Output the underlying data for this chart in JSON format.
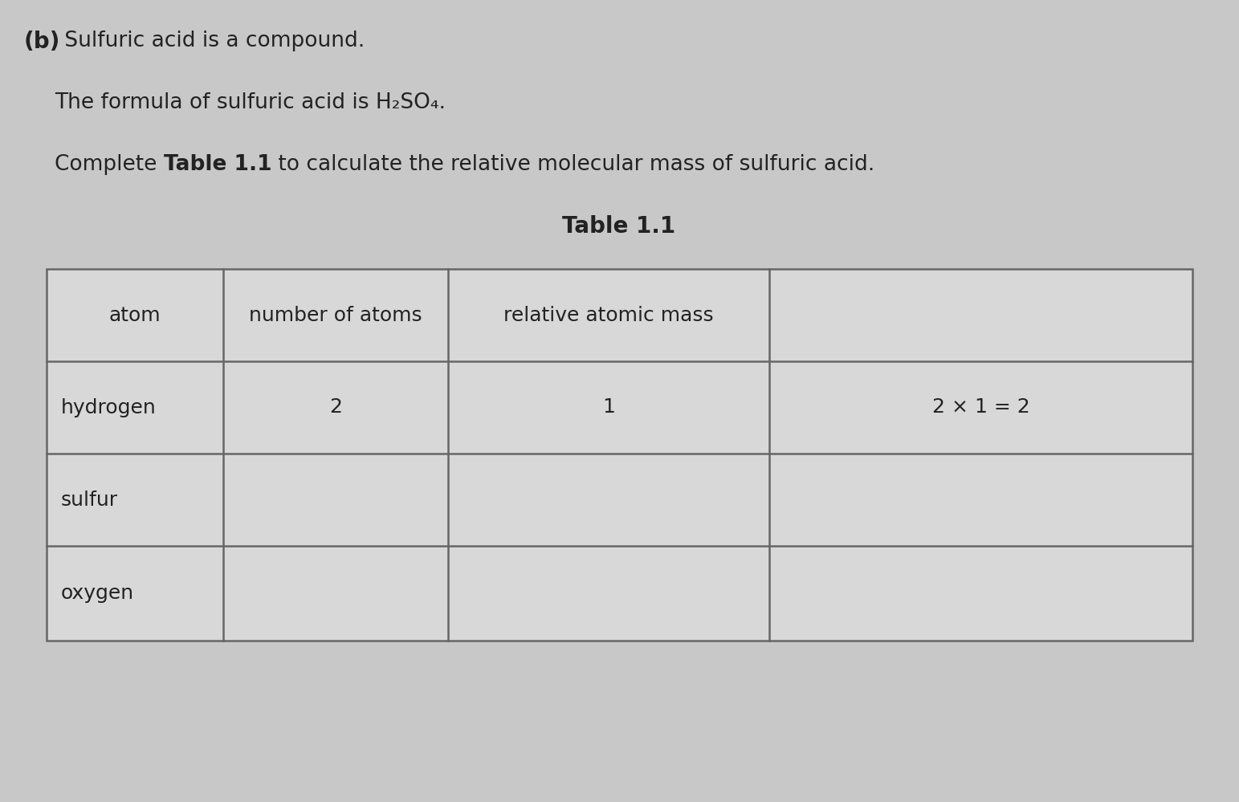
{
  "background_color": "#c8c8c8",
  "text_color": "#222222",
  "title_bold": "(b)",
  "line1_rest": " Sulfuric acid is a compound.",
  "line2": "The formula of sulfuric acid is H₂SO₄.",
  "line3_prefix": "Complete ",
  "line3_bold": "Table 1.1",
  "line3_suffix": " to calculate the relative molecular mass of sulfuric acid.",
  "table_title": "Table 1.1",
  "col_headers": [
    "atom",
    "number of atoms",
    "relative atomic mass",
    ""
  ],
  "rows": [
    [
      "hydrogen",
      "2",
      "1",
      "2 × 1 = 2"
    ],
    [
      "sulfur",
      "",
      "",
      ""
    ],
    [
      "oxygen",
      "",
      "",
      ""
    ]
  ],
  "table_line_color": "#666666",
  "cell_bg": "#d8d8d8",
  "font_size_body": 19,
  "font_size_bold_heading": 20,
  "font_size_table_title": 20,
  "font_size_cell": 18
}
